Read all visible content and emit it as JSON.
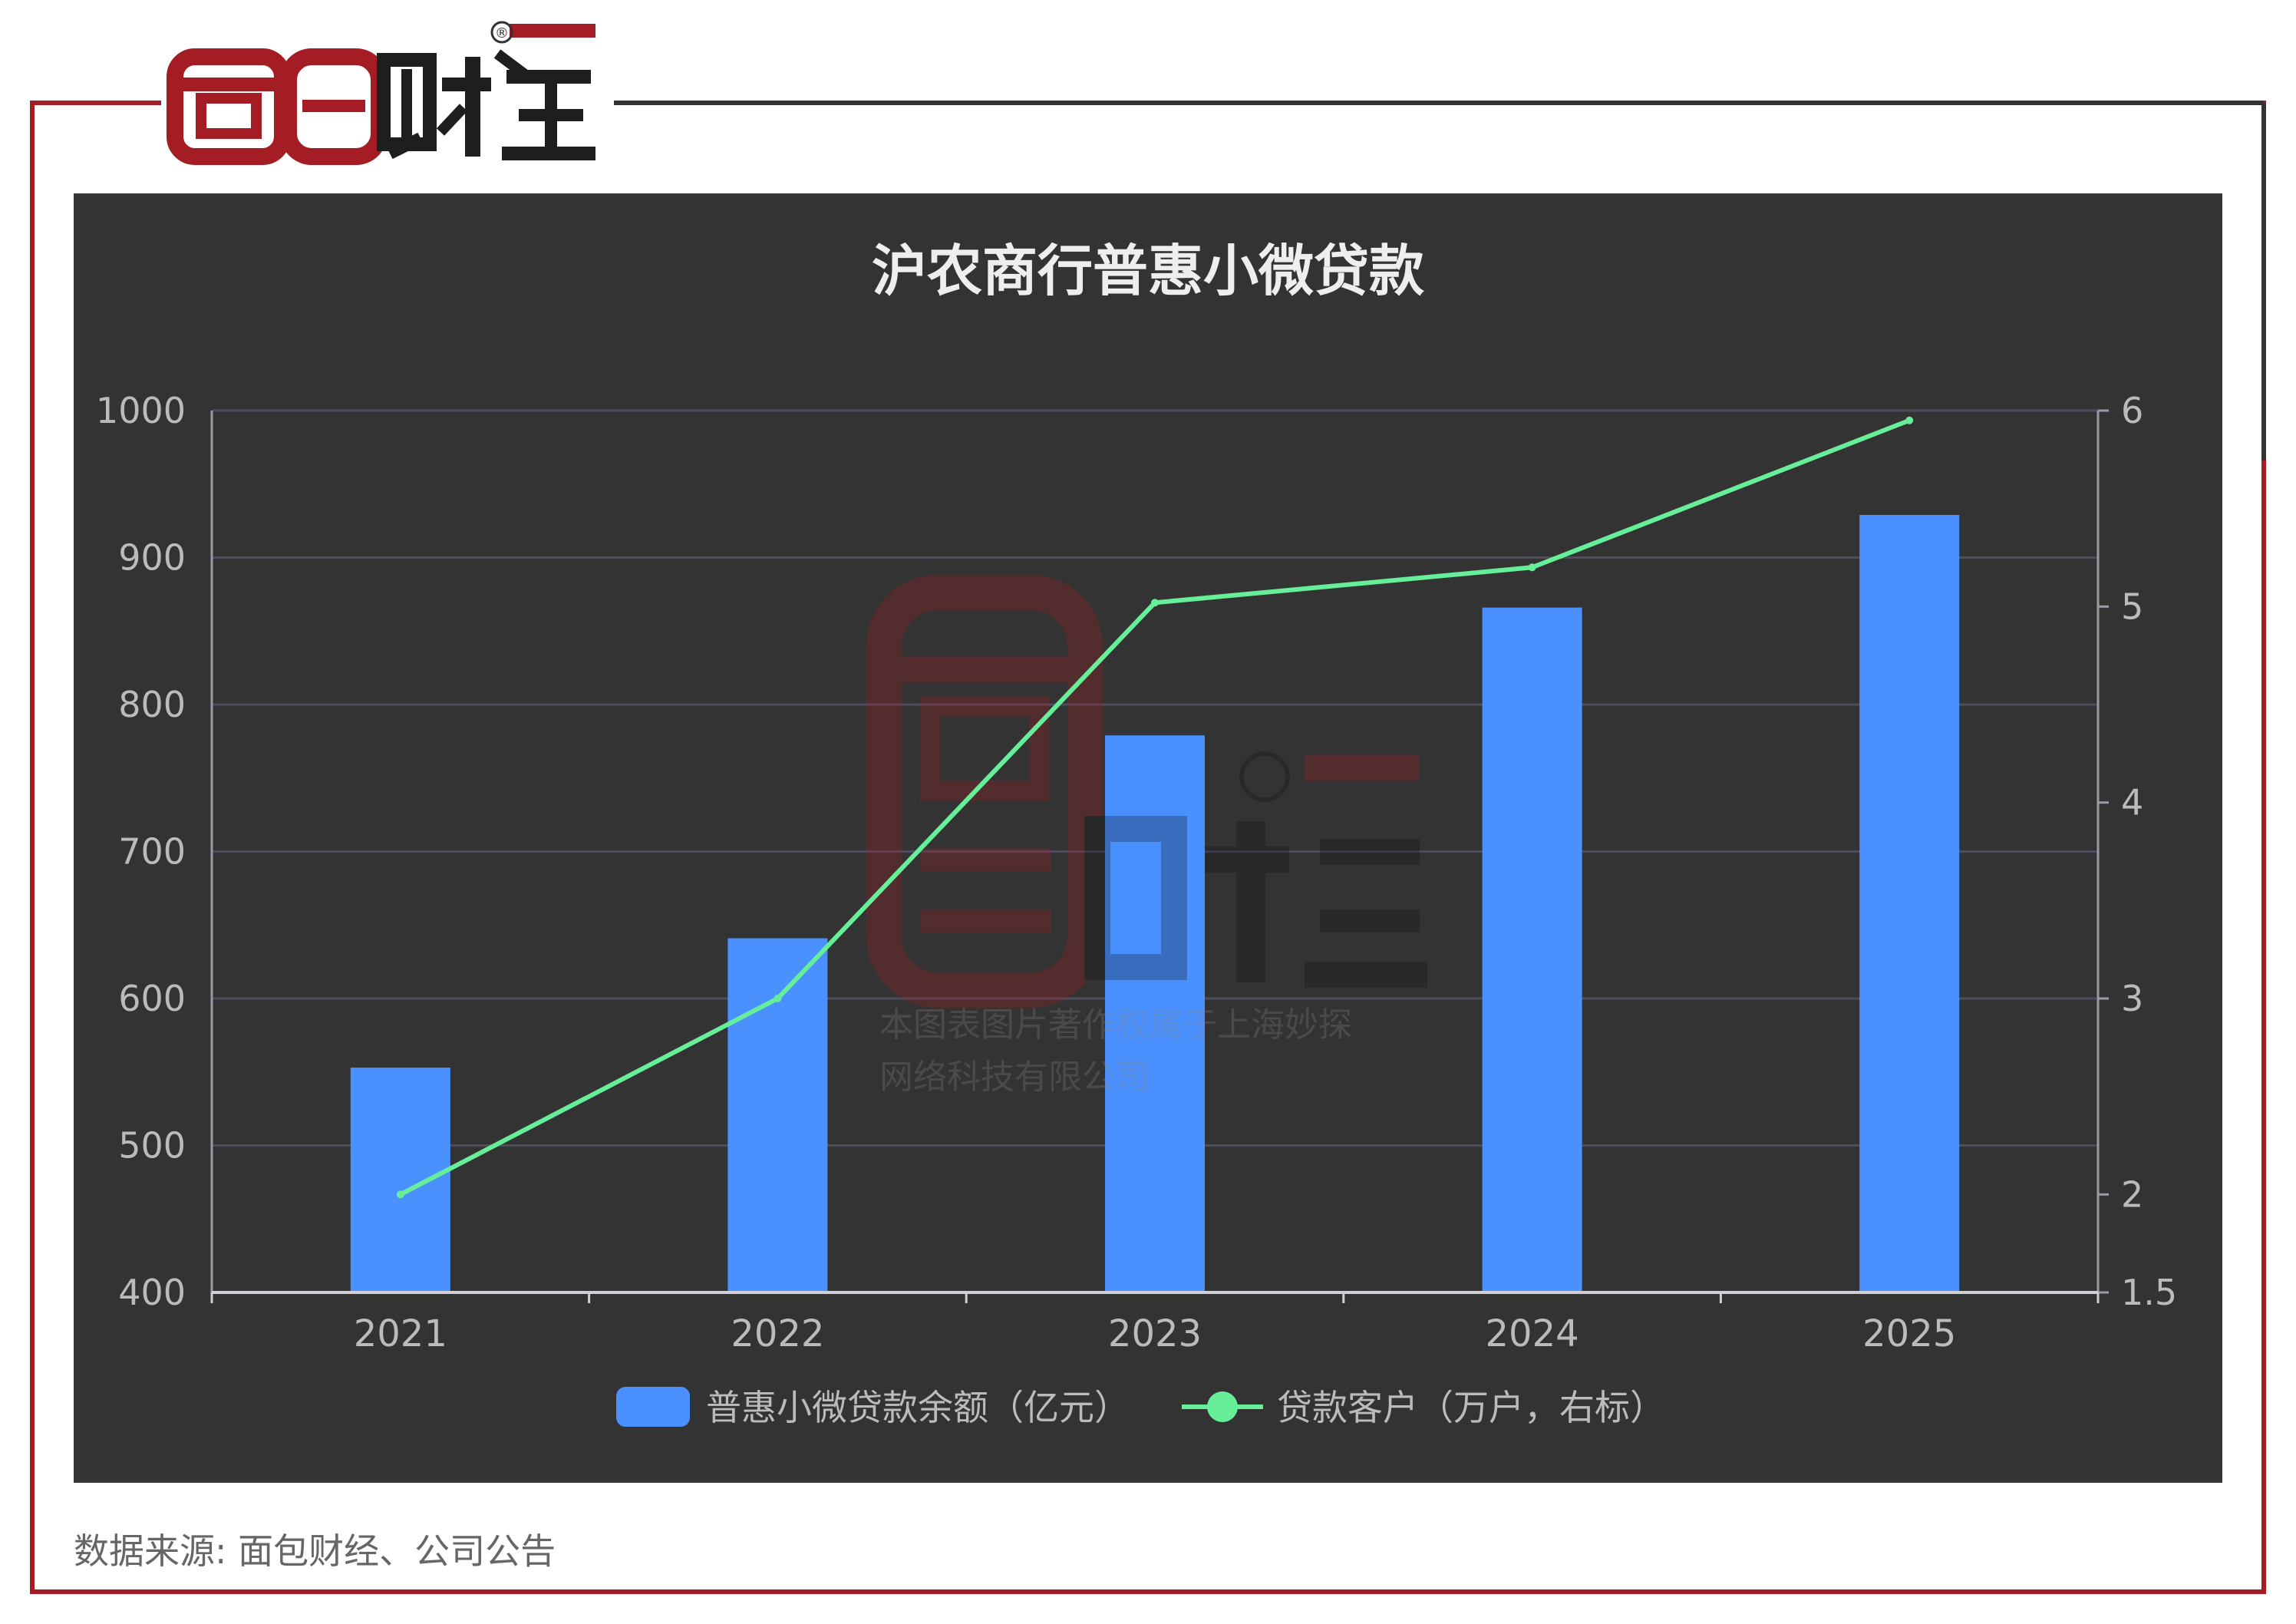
{
  "brand": {
    "name": "面包财经",
    "registered_mark": "®",
    "red": "#a51d24",
    "dark": "#222222"
  },
  "watermark": {
    "text_line1": "本图表图片著作权属于上海妙探",
    "text_line2": "网络科技有限公司"
  },
  "source_text": "数据来源: 面包财经、公司公告",
  "chart_data": {
    "type": "bar",
    "title": "沪农商行普惠小微贷款",
    "categories": [
      "2021",
      "2022",
      "2023",
      "2024",
      "2025"
    ],
    "series": [
      {
        "name": "普惠小微贷款余额（亿元）",
        "type": "bar",
        "axis": "left",
        "color": "#4a90ff",
        "values": [
          553,
          641,
          779,
          866,
          929
        ]
      },
      {
        "name": "贷款客户（万户，右标）",
        "type": "line",
        "axis": "right",
        "color": "#66ee99",
        "values": [
          2.0,
          3.0,
          5.02,
          5.2,
          5.95
        ]
      }
    ],
    "y_left": {
      "min": 400,
      "max": 1000,
      "ticks": [
        "400",
        "500",
        "600",
        "700",
        "800",
        "900",
        "1000"
      ]
    },
    "y_right": {
      "min": 1.5,
      "max": 6,
      "ticks": [
        "1.5",
        "2",
        "3",
        "4",
        "5",
        "6"
      ]
    },
    "grid": true,
    "legend_position": "bottom",
    "background": "#333333",
    "text_color": "#bbbbbb",
    "title_color": "#eeeeee",
    "grid_color": "#4d4d5e",
    "axis_color": "#9a9aa6"
  }
}
